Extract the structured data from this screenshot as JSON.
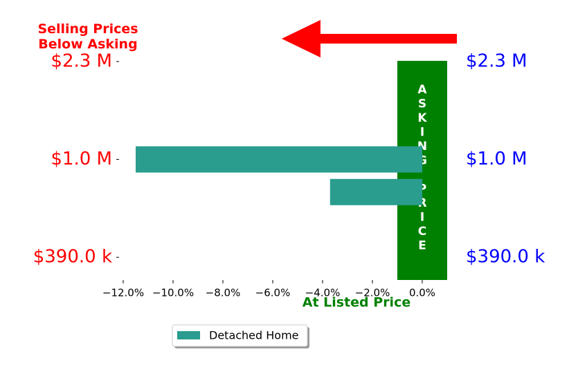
{
  "chart_data": {
    "type": "barh",
    "title": "Selling Prices\nBelow Asking",
    "xlabel": "At Listed Price",
    "categories": [
      "$2.3 M",
      null,
      null,
      "$1.0 M",
      null,
      null,
      "$390.0 k"
    ],
    "series": [
      {
        "name": "Detached Home",
        "color": "#2a9d8f",
        "values": [
          null,
          null,
          null,
          -11.5,
          -3.7,
          null,
          null
        ]
      }
    ],
    "xlim": [
      -12.5,
      1.0
    ],
    "xticks": [
      {
        "value": -12,
        "label": "−12.0%"
      },
      {
        "value": -10,
        "label": "−10.0%"
      },
      {
        "value": -8,
        "label": "−8.0%"
      },
      {
        "value": -6,
        "label": "−6.0%"
      },
      {
        "value": -4,
        "label": "−4.0%"
      },
      {
        "value": -2,
        "label": "−2.0%"
      },
      {
        "value": 0,
        "label": "0.0%"
      }
    ],
    "band": {
      "label": "ASKING PRICE",
      "range": [
        -1.0,
        1.0
      ],
      "color": "#008000"
    },
    "legend": "lower left"
  }
}
